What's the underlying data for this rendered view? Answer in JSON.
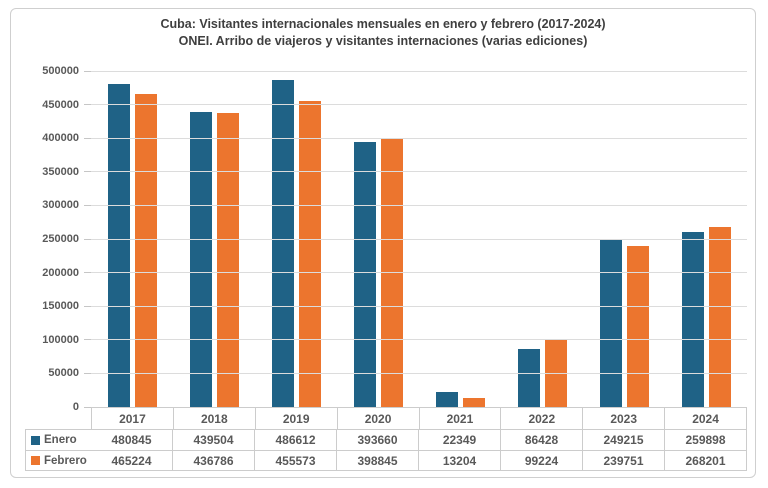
{
  "chart_data": {
    "type": "bar",
    "title": "Cuba: Visitantes internacionales mensuales en enero y febrero (2017-2024)",
    "subtitle": "ONEI. Arribo de viajeros y visitantes internaciones (varias ediciones)",
    "categories": [
      "2017",
      "2018",
      "2019",
      "2020",
      "2021",
      "2022",
      "2023",
      "2024"
    ],
    "series": [
      {
        "name": "Enero",
        "color": "#1f6286",
        "values": [
          480845,
          439504,
          486612,
          393660,
          22349,
          86428,
          249215,
          259898
        ]
      },
      {
        "name": "Febrero",
        "color": "#ec752e",
        "values": [
          465224,
          436786,
          455573,
          398845,
          13204,
          99224,
          239751,
          268201
        ]
      }
    ],
    "ylim": [
      0,
      500000
    ],
    "yticks": [
      0,
      50000,
      100000,
      150000,
      200000,
      250000,
      300000,
      350000,
      400000,
      450000,
      500000
    ],
    "grid": true,
    "legend_position": "table-left",
    "data_table_shown": true
  },
  "colors": {
    "title_text": "#3f3f3f",
    "axis_text": "#595959",
    "gridline": "#dcdcdc",
    "table_border": "#cccccc",
    "figure_border": "#cfcfcf",
    "background": "#ffffff"
  }
}
